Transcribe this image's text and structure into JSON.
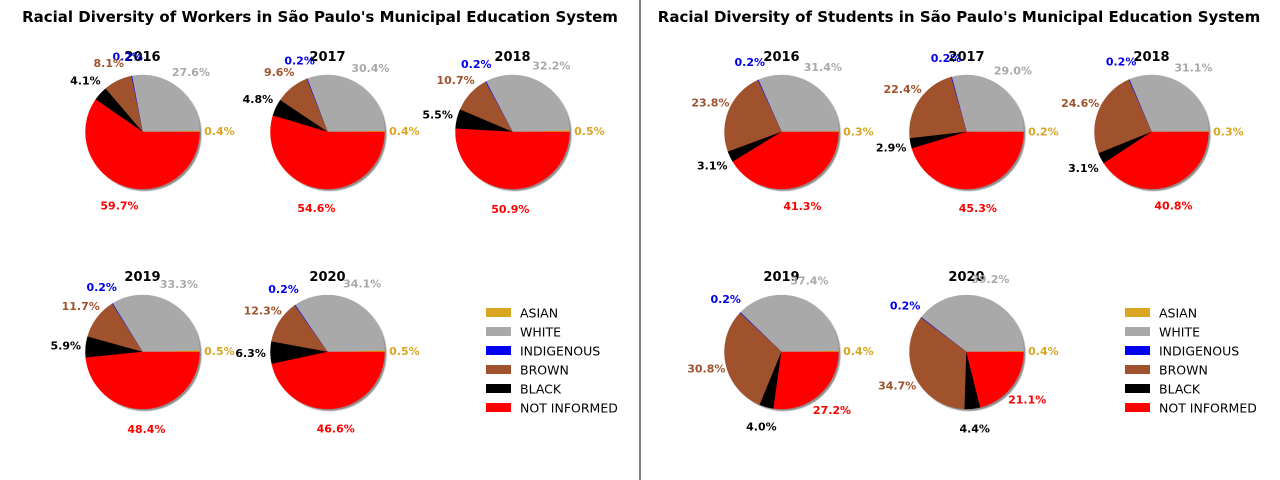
{
  "colors": {
    "ASIAN": "#DAA520",
    "WHITE": "#A9A9A9",
    "INDIGENOUS": "#0000EE",
    "BROWN": "#A0522D",
    "BLACK": "#000000",
    "NOT INFORMED": "#FF0000"
  },
  "legend_labels": [
    "ASIAN",
    "WHITE",
    "INDIGENOUS",
    "BROWN",
    "BLACK",
    "NOT INFORMED"
  ],
  "chart_data": [
    {
      "type": "pie",
      "title": "Racial Diversity of Workers in São Paulo's Municipal Education System",
      "categories": [
        "ASIAN",
        "WHITE",
        "INDIGENOUS",
        "BROWN",
        "BLACK",
        "NOT INFORMED"
      ],
      "legend": "lower-right",
      "pies": [
        {
          "year": "2016",
          "values": [
            0.4,
            27.6,
            0.2,
            8.1,
            4.1,
            59.7
          ],
          "labels": [
            "0.4%",
            "27.6%",
            "0.2%",
            "8.1%",
            "4.1%",
            "59.7%"
          ]
        },
        {
          "year": "2017",
          "values": [
            0.4,
            30.4,
            0.2,
            9.6,
            4.8,
            54.6
          ],
          "labels": [
            "0.4%",
            "30.4%",
            "0.2%",
            "9.6%",
            "4.8%",
            "54.6%"
          ]
        },
        {
          "year": "2018",
          "values": [
            0.5,
            32.2,
            0.2,
            10.7,
            5.5,
            50.9
          ],
          "labels": [
            "0.5%",
            "32.2%",
            "0.2%",
            "10.7%",
            "5.5%",
            "50.9%"
          ]
        },
        {
          "year": "2019",
          "values": [
            0.5,
            33.3,
            0.2,
            11.7,
            5.9,
            48.4
          ],
          "labels": [
            "0.5%",
            "33.3%",
            "0.2%",
            "11.7%",
            "5.9%",
            "48.4%"
          ]
        },
        {
          "year": "2020",
          "values": [
            0.5,
            34.1,
            0.2,
            12.3,
            6.3,
            46.6
          ],
          "labels": [
            "0.5%",
            "34.1%",
            "0.2%",
            "12.3%",
            "6.3%",
            "46.6%"
          ]
        }
      ]
    },
    {
      "type": "pie",
      "title": "Racial Diversity of Students in São Paulo's Municipal Education System",
      "categories": [
        "ASIAN",
        "WHITE",
        "INDIGENOUS",
        "BROWN",
        "BLACK",
        "NOT INFORMED"
      ],
      "legend": "lower-right",
      "pies": [
        {
          "year": "2016",
          "values": [
            0.3,
            31.4,
            0.2,
            23.8,
            3.1,
            41.3
          ],
          "labels": [
            "0.3%",
            "31.4%",
            "0.2%",
            "23.8%",
            "3.1%",
            "41.3%"
          ]
        },
        {
          "year": "2017",
          "values": [
            0.2,
            29.0,
            0.2,
            22.4,
            2.9,
            45.3
          ],
          "labels": [
            "0.2%",
            "29.0%",
            "0.2%",
            "22.4%",
            "2.9%",
            "45.3%"
          ]
        },
        {
          "year": "2018",
          "values": [
            0.3,
            31.1,
            0.2,
            24.6,
            3.1,
            40.8
          ],
          "labels": [
            "0.3%",
            "31.1%",
            "0.2%",
            "24.6%",
            "3.1%",
            "40.8%"
          ]
        },
        {
          "year": "2019",
          "values": [
            0.4,
            37.4,
            0.2,
            30.8,
            4.0,
            27.2
          ],
          "labels": [
            "0.4%",
            "37.4%",
            "0.2%",
            "30.8%",
            "4.0%",
            "27.2%"
          ]
        },
        {
          "year": "2020",
          "values": [
            0.4,
            39.2,
            0.2,
            34.7,
            4.4,
            21.1
          ],
          "labels": [
            "0.4%",
            "39.2%",
            "0.2%",
            "34.7%",
            "4.4%",
            "21.1%"
          ]
        }
      ]
    }
  ]
}
